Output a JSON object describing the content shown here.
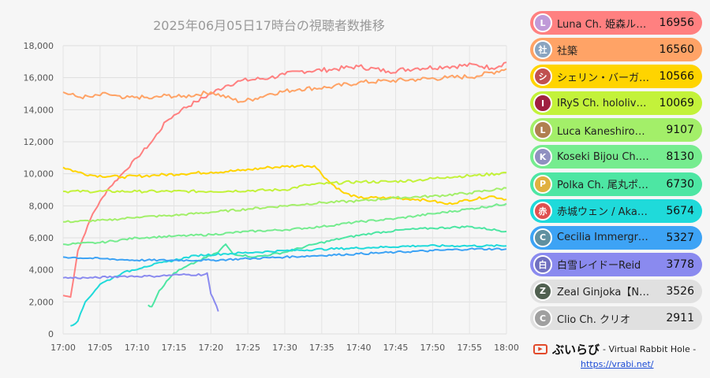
{
  "chart_data": {
    "type": "line",
    "title": "2025年06月05日17時台の視聴者数推移",
    "ylim": [
      0,
      18000
    ],
    "yticks": [
      "0",
      "2,000",
      "4,000",
      "6,000",
      "8,000",
      "10,000",
      "12,000",
      "14,000",
      "16,000",
      "18,000"
    ],
    "xlim": [
      "17:00",
      "18:00"
    ],
    "xticks": [
      "17:00",
      "17:05",
      "17:10",
      "17:15",
      "17:20",
      "17:25",
      "17:30",
      "17:35",
      "17:40",
      "17:45",
      "17:50",
      "17:55",
      "18:00"
    ],
    "grid": true,
    "series": [
      {
        "name": "Luna Ch. 姫森ルーナ",
        "value": 16956,
        "color": "#ff8080",
        "points": [
          [
            0,
            2400
          ],
          [
            1,
            2300
          ],
          [
            2,
            5200
          ],
          [
            4,
            7500
          ],
          [
            6,
            9000
          ],
          [
            8,
            10000
          ],
          [
            10,
            11000
          ],
          [
            12,
            12000
          ],
          [
            14,
            13300
          ],
          [
            16,
            14000
          ],
          [
            18,
            14500
          ],
          [
            20,
            15000
          ],
          [
            22,
            15500
          ],
          [
            24,
            15800
          ],
          [
            28,
            16000
          ],
          [
            30,
            16200
          ],
          [
            32,
            16400
          ],
          [
            36,
            16500
          ],
          [
            40,
            16700
          ],
          [
            44,
            16400
          ],
          [
            48,
            16600
          ],
          [
            52,
            16700
          ],
          [
            56,
            16800
          ],
          [
            58,
            16600
          ],
          [
            60,
            16956
          ]
        ]
      },
      {
        "name": "社築",
        "value": 16560,
        "color": "#ffa366",
        "points": [
          [
            0,
            15100
          ],
          [
            2,
            14800
          ],
          [
            4,
            14800
          ],
          [
            6,
            15000
          ],
          [
            8,
            14700
          ],
          [
            10,
            14800
          ],
          [
            12,
            14700
          ],
          [
            14,
            14900
          ],
          [
            16,
            14800
          ],
          [
            20,
            15100
          ],
          [
            24,
            14500
          ],
          [
            26,
            14700
          ],
          [
            28,
            15000
          ],
          [
            32,
            15300
          ],
          [
            36,
            15400
          ],
          [
            40,
            15700
          ],
          [
            44,
            15800
          ],
          [
            48,
            15900
          ],
          [
            52,
            16000
          ],
          [
            56,
            16100
          ],
          [
            60,
            16560
          ]
        ]
      },
      {
        "name": "シェリン・バーガンディ",
        "value": 10566,
        "color": "#ffd400",
        "points": [
          [
            0,
            10400
          ],
          [
            2,
            10100
          ],
          [
            4,
            9900
          ],
          [
            8,
            9800
          ],
          [
            12,
            9900
          ],
          [
            16,
            10000
          ],
          [
            20,
            10100
          ],
          [
            24,
            10200
          ],
          [
            28,
            10400
          ],
          [
            30,
            10450
          ],
          [
            32,
            10500
          ],
          [
            34,
            10500
          ],
          [
            36,
            9500
          ],
          [
            38,
            8800
          ],
          [
            40,
            8500
          ],
          [
            44,
            8500
          ],
          [
            48,
            8400
          ],
          [
            50,
            8300
          ],
          [
            52,
            8100
          ],
          [
            54,
            8300
          ],
          [
            58,
            8600
          ],
          [
            60,
            8400
          ]
        ]
      },
      {
        "name": "IRyS Ch. hololive-EN",
        "value": 10069,
        "color": "#c3f23a",
        "points": [
          [
            0,
            8900
          ],
          [
            10,
            8900
          ],
          [
            20,
            8900
          ],
          [
            30,
            9000
          ],
          [
            33,
            9300
          ],
          [
            36,
            9400
          ],
          [
            40,
            9500
          ],
          [
            44,
            9500
          ],
          [
            48,
            9600
          ],
          [
            52,
            9800
          ],
          [
            56,
            9900
          ],
          [
            60,
            10069
          ]
        ]
      },
      {
        "name": "Luca Kaneshiro【NIJISANJI EN】",
        "value": 9107,
        "color": "#a3ef69",
        "points": [
          [
            0,
            7000
          ],
          [
            6,
            7100
          ],
          [
            10,
            7300
          ],
          [
            15,
            7400
          ],
          [
            20,
            7600
          ],
          [
            25,
            7800
          ],
          [
            30,
            8000
          ],
          [
            35,
            8200
          ],
          [
            40,
            8300
          ],
          [
            45,
            8500
          ],
          [
            50,
            8600
          ],
          [
            55,
            8800
          ],
          [
            60,
            9107
          ]
        ]
      },
      {
        "name": "Koseki Bijou Ch. hololive-EN",
        "value": 8130,
        "color": "#76ec8f",
        "points": [
          [
            0,
            5600
          ],
          [
            5,
            5700
          ],
          [
            10,
            6000
          ],
          [
            15,
            6100
          ],
          [
            20,
            6200
          ],
          [
            25,
            6400
          ],
          [
            30,
            6500
          ],
          [
            35,
            6700
          ],
          [
            40,
            7000
          ],
          [
            45,
            7200
          ],
          [
            50,
            7500
          ],
          [
            55,
            7800
          ],
          [
            60,
            8130
          ]
        ]
      },
      {
        "name": "Polka Ch. 尾丸ポルカ",
        "value": 6730,
        "color": "#4de6a3",
        "points": [
          [
            11.5,
            1800
          ],
          [
            12,
            1700
          ],
          [
            13,
            2700
          ],
          [
            15,
            3800
          ],
          [
            18,
            4500
          ],
          [
            21,
            5100
          ],
          [
            22,
            5600
          ],
          [
            23,
            5000
          ],
          [
            26,
            4800
          ],
          [
            30,
            5100
          ],
          [
            34,
            5600
          ],
          [
            38,
            6000
          ],
          [
            42,
            6300
          ],
          [
            46,
            6500
          ],
          [
            50,
            6600
          ],
          [
            55,
            6700
          ],
          [
            60,
            6400
          ]
        ]
      },
      {
        "name": "赤城ウェン / Akagi Wen",
        "value": 5674,
        "color": "#1fdada",
        "points": [
          [
            1,
            500
          ],
          [
            2,
            800
          ],
          [
            3,
            2000
          ],
          [
            5,
            3100
          ],
          [
            8,
            3800
          ],
          [
            11,
            4200
          ],
          [
            14,
            4500
          ],
          [
            18,
            4900
          ],
          [
            22,
            5000
          ],
          [
            26,
            5100
          ],
          [
            30,
            5200
          ],
          [
            36,
            5300
          ],
          [
            42,
            5400
          ],
          [
            48,
            5500
          ],
          [
            54,
            5500
          ],
          [
            60,
            5500
          ]
        ]
      },
      {
        "name": "Cecilia Immergreen",
        "value": 5327,
        "color": "#3da3f5",
        "points": [
          [
            0,
            4800
          ],
          [
            5,
            4700
          ],
          [
            10,
            4600
          ],
          [
            15,
            4600
          ],
          [
            20,
            4600
          ],
          [
            25,
            4700
          ],
          [
            30,
            4800
          ],
          [
            35,
            4900
          ],
          [
            40,
            5000
          ],
          [
            45,
            5100
          ],
          [
            50,
            5200
          ],
          [
            55,
            5300
          ],
          [
            60,
            5300
          ]
        ]
      },
      {
        "name": "白雪レイドーReid",
        "value": 3778,
        "color": "#8a8aef",
        "points": [
          [
            0,
            3500
          ],
          [
            4,
            3500
          ],
          [
            8,
            3600
          ],
          [
            12,
            3600
          ],
          [
            16,
            3700
          ],
          [
            19,
            3700
          ],
          [
            19.5,
            3800
          ],
          [
            20,
            2500
          ],
          [
            20.5,
            2000
          ],
          [
            21,
            1400
          ]
        ]
      },
      {
        "name": "Zeal Ginjoka【NIJISANJI EN】",
        "value": 3526,
        "color": "#e0e0e0",
        "points": []
      },
      {
        "name": "Clio Ch. クリオ",
        "value": 2911,
        "color": "#e0e0e0",
        "points": []
      }
    ]
  },
  "legend_meta": [
    {
      "initial": "L",
      "bg": "#c09ad8"
    },
    {
      "initial": "社",
      "bg": "#8aa4c0"
    },
    {
      "initial": "シ",
      "bg": "#c05050"
    },
    {
      "initial": "I",
      "bg": "#a02040"
    },
    {
      "initial": "L",
      "bg": "#b08050"
    },
    {
      "initial": "K",
      "bg": "#9090c0"
    },
    {
      "initial": "P",
      "bg": "#e0b040"
    },
    {
      "initial": "赤",
      "bg": "#e05050"
    },
    {
      "initial": "C",
      "bg": "#6090a0"
    },
    {
      "initial": "白",
      "bg": "#7070c0"
    },
    {
      "initial": "Z",
      "bg": "#506050"
    },
    {
      "initial": "C",
      "bg": "#a0a0a0"
    }
  ],
  "brand": {
    "name": "ぶいらび",
    "tagline": "- Virtual Rabbit Hole -",
    "url": "https://vrabi.net/"
  }
}
